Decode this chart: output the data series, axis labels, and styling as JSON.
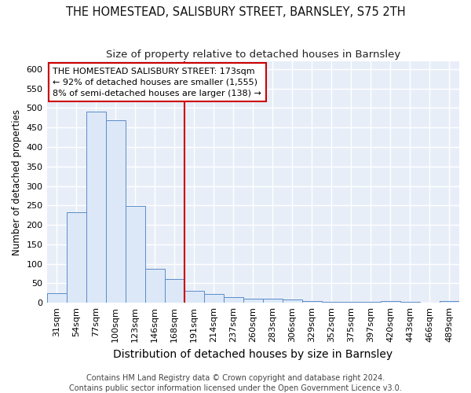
{
  "title": "THE HOMESTEAD, SALISBURY STREET, BARNSLEY, S75 2TH",
  "subtitle": "Size of property relative to detached houses in Barnsley",
  "xlabel": "Distribution of detached houses by size in Barnsley",
  "ylabel": "Number of detached properties",
  "categories": [
    "31sqm",
    "54sqm",
    "77sqm",
    "100sqm",
    "123sqm",
    "146sqm",
    "168sqm",
    "191sqm",
    "214sqm",
    "237sqm",
    "260sqm",
    "283sqm",
    "306sqm",
    "329sqm",
    "352sqm",
    "375sqm",
    "397sqm",
    "420sqm",
    "443sqm",
    "466sqm",
    "489sqm"
  ],
  "values": [
    25,
    232,
    490,
    468,
    248,
    88,
    60,
    30,
    22,
    14,
    11,
    10,
    8,
    4,
    2,
    2,
    2,
    5,
    2,
    0,
    5
  ],
  "bar_color": "#dce8f8",
  "bar_edge_color": "#5b8cc8",
  "vline_index": 6,
  "vline_color": "#cc0000",
  "annotation_text": "THE HOMESTEAD SALISBURY STREET: 173sqm\n← 92% of detached houses are smaller (1,555)\n8% of semi-detached houses are larger (138) →",
  "annotation_box_facecolor": "#ffffff",
  "annotation_box_edgecolor": "#cc0000",
  "footer": "Contains HM Land Registry data © Crown copyright and database right 2024.\nContains public sector information licensed under the Open Government Licence v3.0.",
  "fig_facecolor": "#ffffff",
  "plot_facecolor": "#e8eef8",
  "grid_color": "#ffffff",
  "ylim": [
    0,
    620
  ],
  "yticks": [
    0,
    50,
    100,
    150,
    200,
    250,
    300,
    350,
    400,
    450,
    500,
    550,
    600
  ],
  "title_fontsize": 10.5,
  "subtitle_fontsize": 9.5,
  "xlabel_fontsize": 10,
  "ylabel_fontsize": 8.5,
  "tick_fontsize": 8,
  "annotation_fontsize": 8,
  "footer_fontsize": 7
}
